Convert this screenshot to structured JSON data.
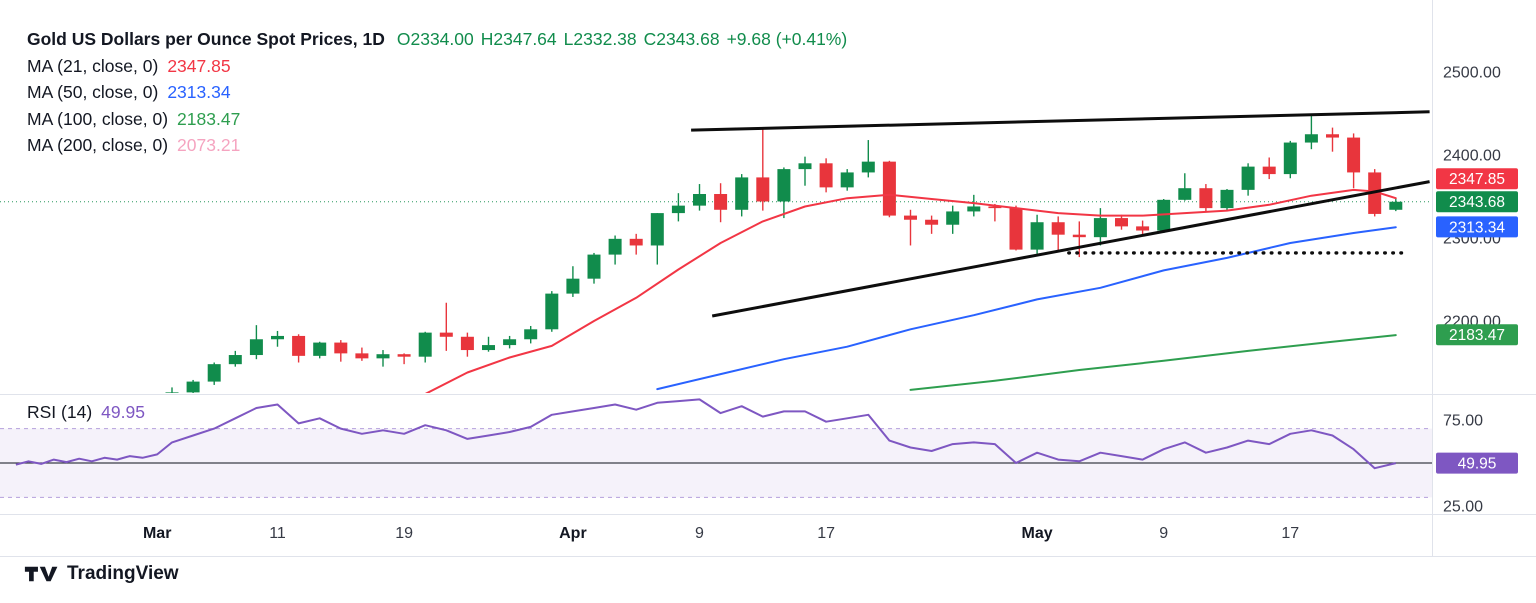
{
  "header": {
    "symbol_title": "Gold US Dollars per Ounce Spot Prices, 1D",
    "ohlc": {
      "open": "O2334.00",
      "high": "H2347.64",
      "low": "L2332.38",
      "close": "C2343.68",
      "change": "+9.68 (+0.41%)"
    },
    "ma_rows": [
      {
        "label": "MA (21, close, 0)",
        "value": "2347.85",
        "color": "#f23645"
      },
      {
        "label": "MA (50, close, 0)",
        "value": "2313.34",
        "color": "#2962ff"
      },
      {
        "label": "MA (100, close, 0)",
        "value": "2183.47",
        "color": "#2e9e4f"
      },
      {
        "label": "MA (200, close, 0)",
        "value": "2073.21",
        "color": "#f5a4c0"
      }
    ]
  },
  "rsi_legend": {
    "label": "RSI (14)",
    "value": "49.95",
    "color": "#7e57c2"
  },
  "watermark": "TradingView",
  "price_axis": {
    "ticks": [
      {
        "label": "2500.00",
        "value": 2500
      },
      {
        "label": "2400.00",
        "value": 2400
      },
      {
        "label": "2300.00",
        "value": 2300
      },
      {
        "label": "2200.00",
        "value": 2200
      }
    ],
    "badges": [
      {
        "label": "2347.85",
        "value": 2347.85,
        "bg": "#f23645"
      },
      {
        "label": "2343.68",
        "value": 2343.68,
        "bg": "#118c4c"
      },
      {
        "label": "2313.34",
        "value": 2313.34,
        "bg": "#2962ff"
      },
      {
        "label": "2183.47",
        "value": 2183.47,
        "bg": "#2e9e4f"
      }
    ]
  },
  "rsi_axis": {
    "ticks": [
      {
        "label": "75.00",
        "value": 75
      },
      {
        "label": "25.00",
        "value": 25
      }
    ],
    "badge": {
      "label": "49.95",
      "value": 49.95,
      "bg": "#7e57c2"
    }
  },
  "time_axis": [
    {
      "label": "Mar",
      "index": -0.7,
      "major": true
    },
    {
      "label": "11",
      "index": 5,
      "major": false
    },
    {
      "label": "19",
      "index": 11,
      "major": false
    },
    {
      "label": "Apr",
      "index": 19,
      "major": true
    },
    {
      "label": "9",
      "index": 25,
      "major": false
    },
    {
      "label": "17",
      "index": 31,
      "major": false
    },
    {
      "label": "May",
      "index": 41,
      "major": true
    },
    {
      "label": "9",
      "index": 47,
      "major": false
    },
    {
      "label": "17",
      "index": 53,
      "major": false
    }
  ],
  "chart_data": {
    "type": "candlestick",
    "title": "Gold US Dollars per Ounce Spot Prices",
    "interval": "1D",
    "ohlc_current": {
      "open": 2334.0,
      "high": 2347.64,
      "low": 2332.38,
      "close": 2343.68,
      "change": 9.68,
      "change_pct": 0.41
    },
    "price_axis_visible_range": [
      2110,
      2505
    ],
    "colors": {
      "up": "#118c4c",
      "down": "#e8353c",
      "ma21": "#f23645",
      "ma50": "#2962ff",
      "ma100": "#2e9e4f",
      "ma200": "#f5a4c0",
      "rsi": "#7e57c2",
      "trendline": "#0d0d0d",
      "axis_text": "#363a45"
    },
    "candle_format": [
      "date",
      "open",
      "high",
      "low",
      "close"
    ],
    "candles": [
      [
        "Mar 4",
        2083,
        2120,
        2081,
        2114
      ],
      [
        "Mar 5",
        2114,
        2129,
        2112,
        2127
      ],
      [
        "Mar 6",
        2127,
        2150,
        2123,
        2148
      ],
      [
        "Mar 7",
        2148,
        2164,
        2145,
        2159
      ],
      [
        "Mar 8",
        2159,
        2195,
        2154,
        2178
      ],
      [
        "Mar 11",
        2178,
        2188,
        2169,
        2182
      ],
      [
        "Mar 12",
        2182,
        2184,
        2150,
        2158
      ],
      [
        "Mar 13",
        2158,
        2175,
        2155,
        2174
      ],
      [
        "Mar 14",
        2174,
        2177,
        2151,
        2161
      ],
      [
        "Mar 15",
        2161,
        2168,
        2152,
        2155
      ],
      [
        "Mar 18",
        2155,
        2165,
        2145,
        2160
      ],
      [
        "Mar 19",
        2160,
        2161,
        2148,
        2157
      ],
      [
        "Mar 20",
        2157,
        2187,
        2150,
        2186
      ],
      [
        "Mar 21",
        2186,
        2222,
        2164,
        2181
      ],
      [
        "Mar 22",
        2181,
        2186,
        2157,
        2165
      ],
      [
        "Mar 25",
        2165,
        2181,
        2163,
        2171
      ],
      [
        "Mar 26",
        2171,
        2182,
        2167,
        2178
      ],
      [
        "Mar 27",
        2178,
        2194,
        2173,
        2190
      ],
      [
        "Mar 28",
        2190,
        2236,
        2187,
        2233
      ],
      [
        "Apr 1",
        2233,
        2266,
        2229,
        2251
      ],
      [
        "Apr 2",
        2251,
        2282,
        2245,
        2280
      ],
      [
        "Apr 3",
        2280,
        2303,
        2268,
        2299
      ],
      [
        "Apr 4",
        2299,
        2305,
        2280,
        2291
      ],
      [
        "Apr 5",
        2291,
        2330,
        2268,
        2330
      ],
      [
        "Apr 8",
        2330,
        2354,
        2320,
        2339
      ],
      [
        "Apr 9",
        2339,
        2365,
        2333,
        2353
      ],
      [
        "Apr 10",
        2353,
        2366,
        2319,
        2334
      ],
      [
        "Apr 11",
        2334,
        2377,
        2326,
        2373
      ],
      [
        "Apr 12",
        2373,
        2431,
        2333,
        2344
      ],
      [
        "Apr 15",
        2344,
        2385,
        2324,
        2383
      ],
      [
        "Apr 16",
        2383,
        2398,
        2363,
        2390
      ],
      [
        "Apr 17",
        2390,
        2396,
        2355,
        2361
      ],
      [
        "Apr 18",
        2361,
        2383,
        2357,
        2379
      ],
      [
        "Apr 19",
        2379,
        2418,
        2373,
        2392
      ],
      [
        "Apr 22",
        2392,
        2393,
        2325,
        2327
      ],
      [
        "Apr 23",
        2327,
        2334,
        2291,
        2322
      ],
      [
        "Apr 24",
        2322,
        2327,
        2305,
        2316
      ],
      [
        "Apr 25",
        2316,
        2339,
        2305,
        2332
      ],
      [
        "Apr 26",
        2332,
        2352,
        2326,
        2338
      ],
      [
        "Apr 29",
        2338,
        2341,
        2320,
        2336
      ],
      [
        "Apr 30",
        2336,
        2339,
        2285,
        2286
      ],
      [
        "May 1",
        2286,
        2328,
        2281,
        2319
      ],
      [
        "May 2",
        2319,
        2326,
        2285,
        2304
      ],
      [
        "May 3",
        2304,
        2320,
        2277,
        2301
      ],
      [
        "May 6",
        2301,
        2336,
        2291,
        2324
      ],
      [
        "May 7",
        2324,
        2328,
        2310,
        2314
      ],
      [
        "May 8",
        2314,
        2321,
        2303,
        2309
      ],
      [
        "May 9",
        2309,
        2347,
        2306,
        2346
      ],
      [
        "May 10",
        2346,
        2378,
        2345,
        2360
      ],
      [
        "May 13",
        2360,
        2365,
        2332,
        2336
      ],
      [
        "May 14",
        2336,
        2359,
        2333,
        2358
      ],
      [
        "May 15",
        2358,
        2390,
        2351,
        2386
      ],
      [
        "May 16",
        2386,
        2397,
        2371,
        2377
      ],
      [
        "May 17",
        2377,
        2417,
        2372,
        2415
      ],
      [
        "May 20",
        2415,
        2450,
        2407,
        2425
      ],
      [
        "May 21",
        2425,
        2433,
        2404,
        2421
      ],
      [
        "May 22",
        2421,
        2426,
        2360,
        2379
      ],
      [
        "May 23",
        2379,
        2383,
        2326,
        2329
      ],
      [
        "May 24",
        2334,
        2347.64,
        2332.38,
        2343.68
      ]
    ],
    "moving_averages": [
      {
        "period": 21,
        "current": 2347.85,
        "color": "#f23645",
        "points": [
          [
            12,
            2112
          ],
          [
            14,
            2138
          ],
          [
            16,
            2156
          ],
          [
            18,
            2170
          ],
          [
            20,
            2200
          ],
          [
            22,
            2228
          ],
          [
            24,
            2262
          ],
          [
            26,
            2294
          ],
          [
            28,
            2320
          ],
          [
            30,
            2338
          ],
          [
            32,
            2348
          ],
          [
            34,
            2352
          ],
          [
            36,
            2347
          ],
          [
            38,
            2342
          ],
          [
            40,
            2336
          ],
          [
            42,
            2330
          ],
          [
            44,
            2327
          ],
          [
            46,
            2327
          ],
          [
            48,
            2330
          ],
          [
            50,
            2333
          ],
          [
            52,
            2340
          ],
          [
            54,
            2351
          ],
          [
            56,
            2358
          ],
          [
            57,
            2356
          ],
          [
            58,
            2348
          ]
        ]
      },
      {
        "period": 50,
        "current": 2313.34,
        "color": "#2962ff",
        "points": [
          [
            23,
            2118
          ],
          [
            26,
            2136
          ],
          [
            29,
            2154
          ],
          [
            32,
            2169
          ],
          [
            35,
            2190
          ],
          [
            38,
            2207
          ],
          [
            41,
            2226
          ],
          [
            44,
            2240
          ],
          [
            47,
            2261
          ],
          [
            50,
            2276
          ],
          [
            53,
            2294
          ],
          [
            56,
            2306
          ],
          [
            58,
            2313
          ]
        ]
      },
      {
        "period": 100,
        "current": 2183.47,
        "color": "#2e9e4f",
        "points": [
          [
            35,
            2117
          ],
          [
            39,
            2128
          ],
          [
            43,
            2141
          ],
          [
            47,
            2152
          ],
          [
            51,
            2164
          ],
          [
            55,
            2175
          ],
          [
            58,
            2183
          ]
        ]
      },
      {
        "period": 200,
        "current": 2073.21,
        "color": "#f5a4c0",
        "points": []
      }
    ],
    "trendlines": [
      {
        "name": "upper-resistance-trendline",
        "style": "solid",
        "points": [
          [
            24.6,
            2430
          ],
          [
            59.6,
            2452
          ]
        ]
      },
      {
        "name": "lower-support-trendline",
        "style": "solid",
        "points": [
          [
            25.6,
            2206
          ],
          [
            59.6,
            2368
          ]
        ]
      },
      {
        "name": "horizontal-support-dotted-line",
        "style": "dotted",
        "points": [
          [
            42.5,
            2282
          ],
          [
            58.3,
            2282
          ]
        ]
      }
    ],
    "last_price_line": {
      "price": 2343.68
    },
    "rsi": {
      "period": 14,
      "current": 49.95,
      "overbought": 70,
      "oversold": 30,
      "axis_ticks": [
        75,
        25
      ],
      "points": [
        [
          -7.4,
          49
        ],
        [
          -6.8,
          51
        ],
        [
          -6.2,
          49.5
        ],
        [
          -5.6,
          52
        ],
        [
          -5,
          50.5
        ],
        [
          -4.4,
          52.5
        ],
        [
          -3.8,
          51
        ],
        [
          -3.2,
          53
        ],
        [
          -2.6,
          52
        ],
        [
          -2,
          54
        ],
        [
          -1.4,
          53
        ],
        [
          -0.7,
          55
        ],
        [
          0,
          62
        ],
        [
          1,
          66
        ],
        [
          2,
          70
        ],
        [
          3,
          76
        ],
        [
          4,
          82
        ],
        [
          5,
          84
        ],
        [
          6,
          73
        ],
        [
          7,
          76
        ],
        [
          8,
          70
        ],
        [
          9,
          67
        ],
        [
          10,
          69
        ],
        [
          11,
          67
        ],
        [
          12,
          72
        ],
        [
          13,
          69
        ],
        [
          14,
          64
        ],
        [
          15,
          66
        ],
        [
          16,
          68
        ],
        [
          17,
          71
        ],
        [
          18,
          78
        ],
        [
          19,
          80
        ],
        [
          20,
          82
        ],
        [
          21,
          84
        ],
        [
          22,
          81
        ],
        [
          23,
          85
        ],
        [
          24,
          86
        ],
        [
          25,
          87
        ],
        [
          26,
          79
        ],
        [
          27,
          83
        ],
        [
          28,
          77
        ],
        [
          29,
          80
        ],
        [
          30,
          80
        ],
        [
          31,
          74
        ],
        [
          32,
          76
        ],
        [
          33,
          78
        ],
        [
          34,
          63
        ],
        [
          35,
          59
        ],
        [
          36,
          57
        ],
        [
          37,
          61
        ],
        [
          38,
          62
        ],
        [
          39,
          61
        ],
        [
          40,
          50
        ],
        [
          41,
          56
        ],
        [
          42,
          52
        ],
        [
          43,
          51
        ],
        [
          44,
          56
        ],
        [
          45,
          54
        ],
        [
          46,
          52
        ],
        [
          47,
          58
        ],
        [
          48,
          62
        ],
        [
          49,
          56
        ],
        [
          50,
          59
        ],
        [
          51,
          63
        ],
        [
          52,
          61
        ],
        [
          53,
          67
        ],
        [
          54,
          69
        ],
        [
          55,
          66
        ],
        [
          56,
          58
        ],
        [
          57,
          47
        ],
        [
          58,
          49.95
        ]
      ]
    }
  }
}
